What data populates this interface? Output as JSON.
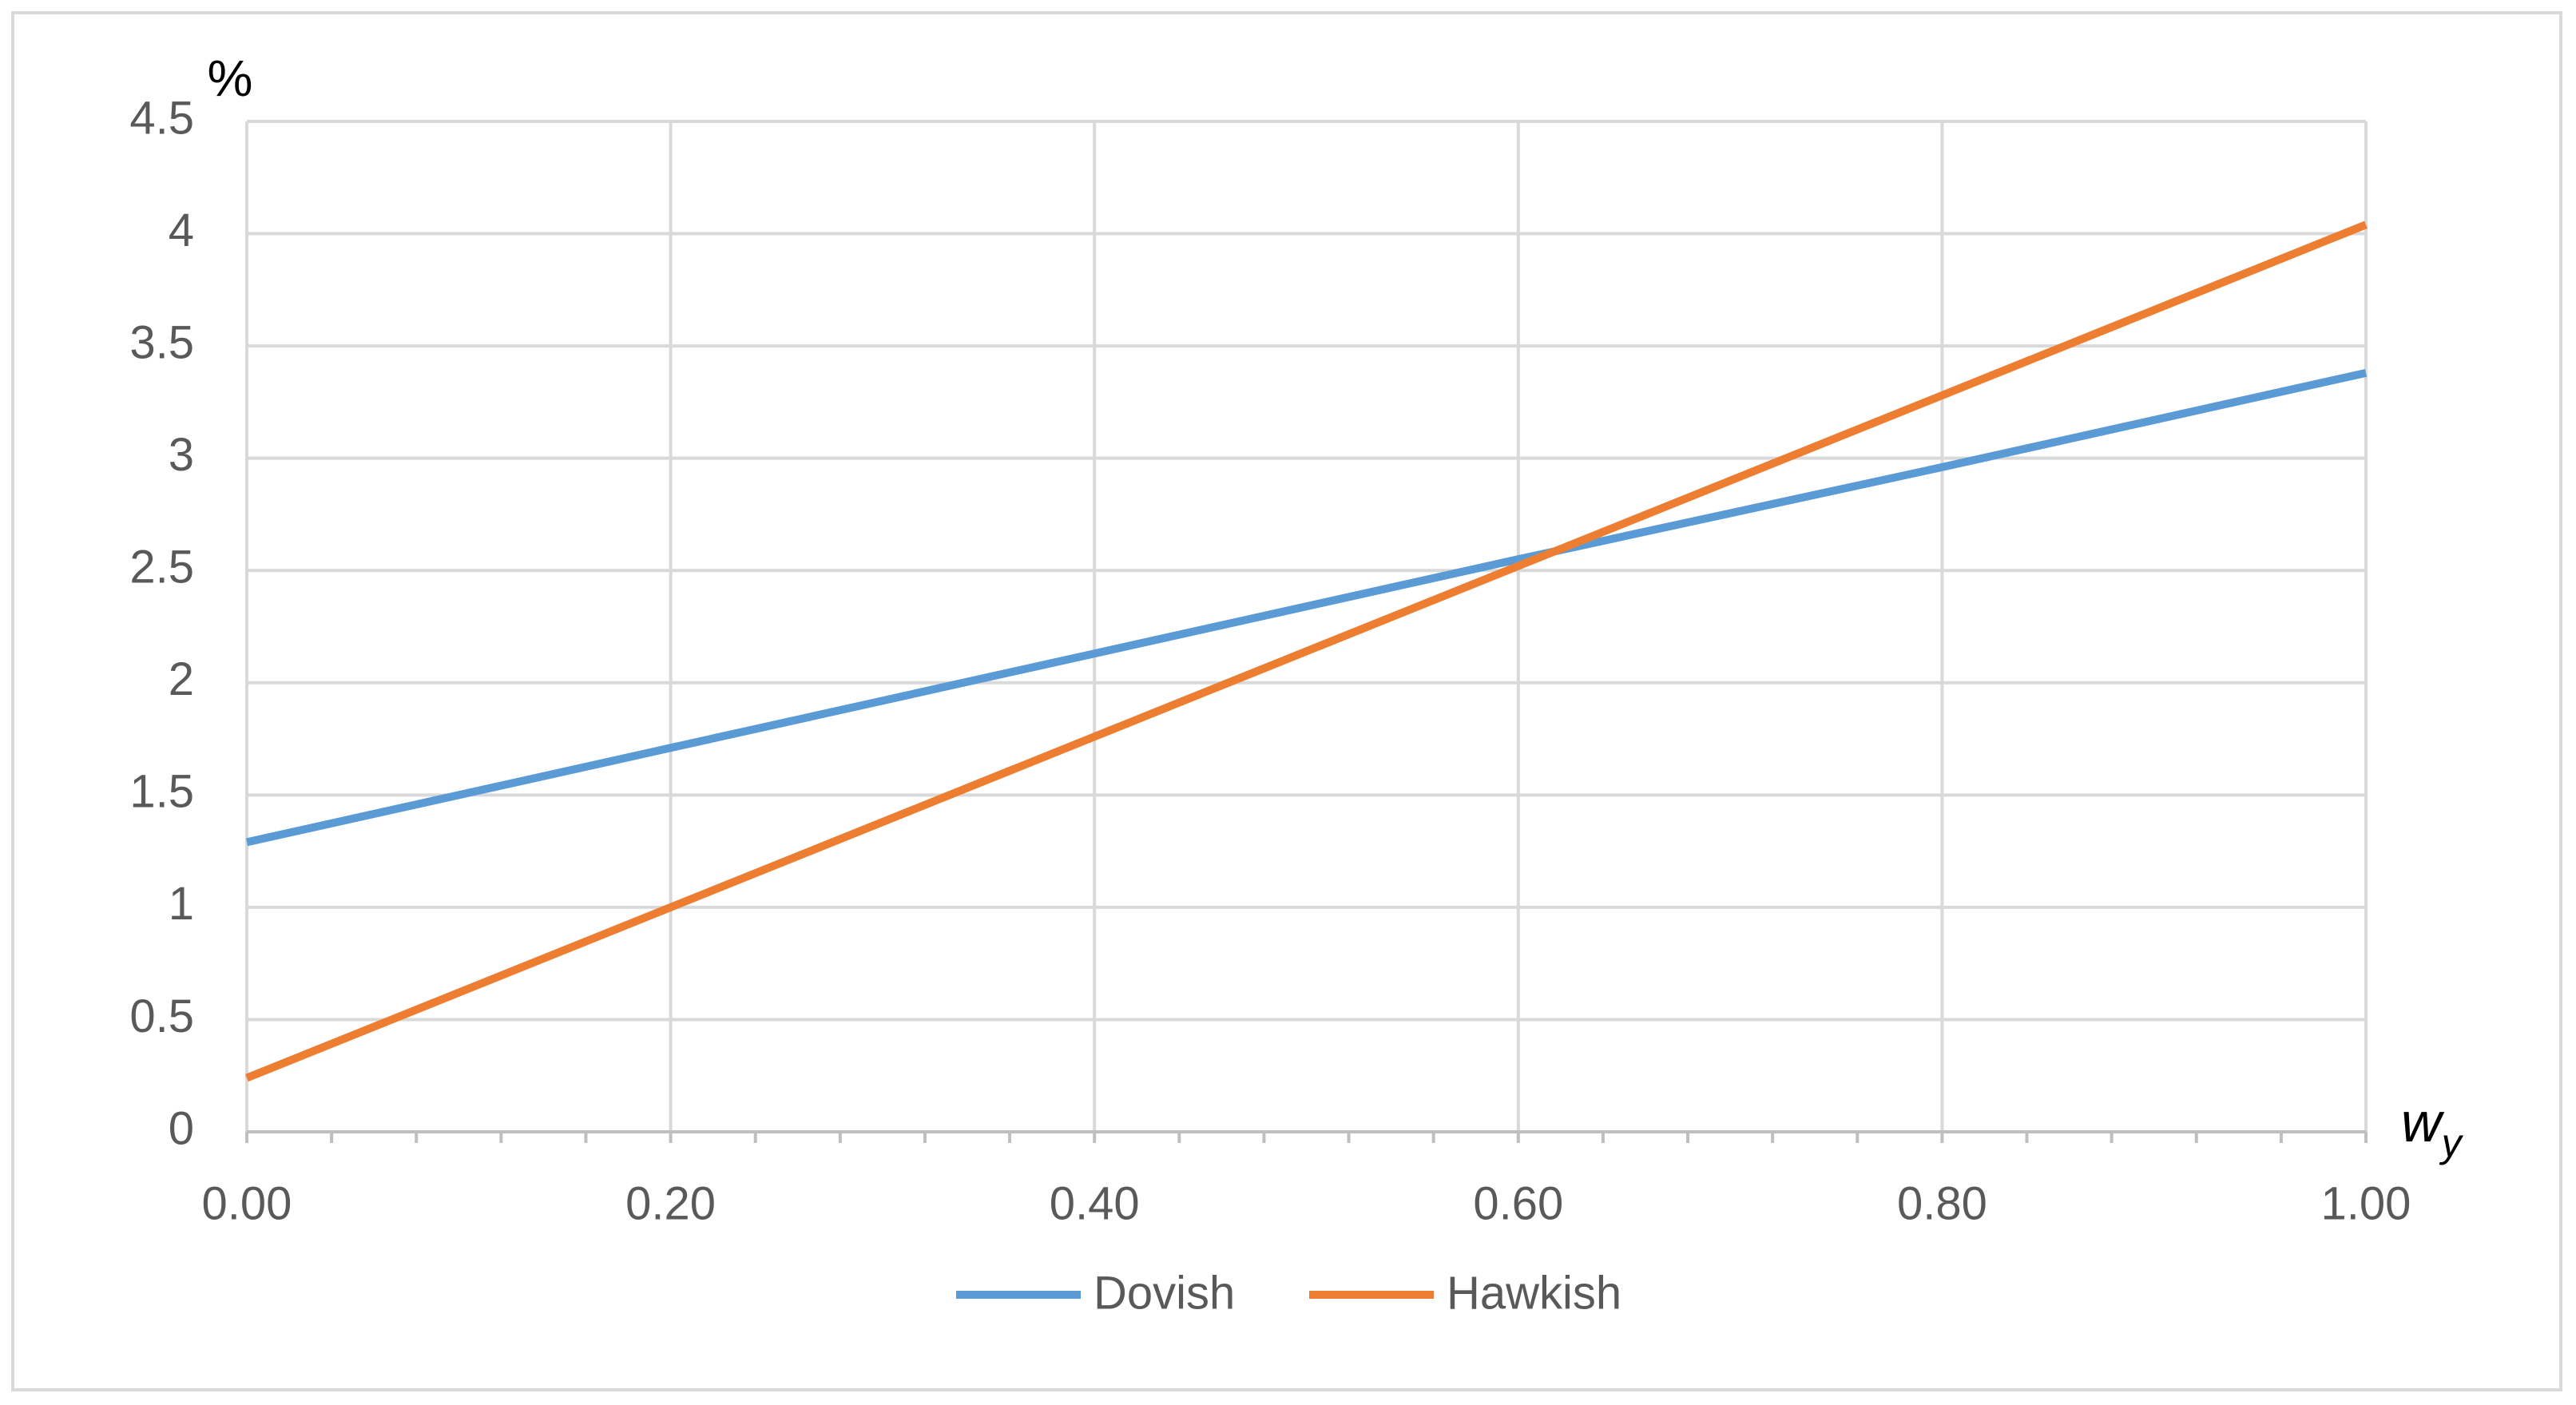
{
  "chart_data": {
    "type": "line",
    "ylabel": "%",
    "xlabel": "w",
    "xlabel_subscript": "y",
    "x": [
      0,
      0.2,
      0.4,
      0.6,
      0.8,
      1.0
    ],
    "series": [
      {
        "name": "Dovish",
        "color": "#5b9bd5",
        "values": [
          1.29,
          1.71,
          2.13,
          2.55,
          2.96,
          3.38
        ]
      },
      {
        "name": "Hawkish",
        "color": "#ed7d31",
        "values": [
          0.24,
          1.0,
          1.76,
          2.52,
          3.28,
          4.04
        ]
      }
    ],
    "xlim": [
      0,
      1
    ],
    "ylim": [
      0,
      4.5
    ],
    "xticks": [
      {
        "value": 0,
        "label": "0.00"
      },
      {
        "value": 0.2,
        "label": "0.20"
      },
      {
        "value": 0.4,
        "label": "0.40"
      },
      {
        "value": 0.6,
        "label": "0.60"
      },
      {
        "value": 0.8,
        "label": "0.80"
      },
      {
        "value": 1,
        "label": "1.00"
      }
    ],
    "xminorticks": [
      0.04,
      0.08,
      0.12,
      0.16,
      0.24,
      0.28,
      0.32,
      0.36,
      0.44,
      0.48,
      0.52,
      0.56,
      0.64,
      0.68,
      0.72,
      0.76,
      0.84,
      0.88,
      0.92,
      0.96
    ],
    "yticks": [
      0,
      0.5,
      1,
      1.5,
      2,
      2.5,
      3,
      3.5,
      4,
      4.5
    ],
    "grid": true,
    "legend": "bottom"
  }
}
